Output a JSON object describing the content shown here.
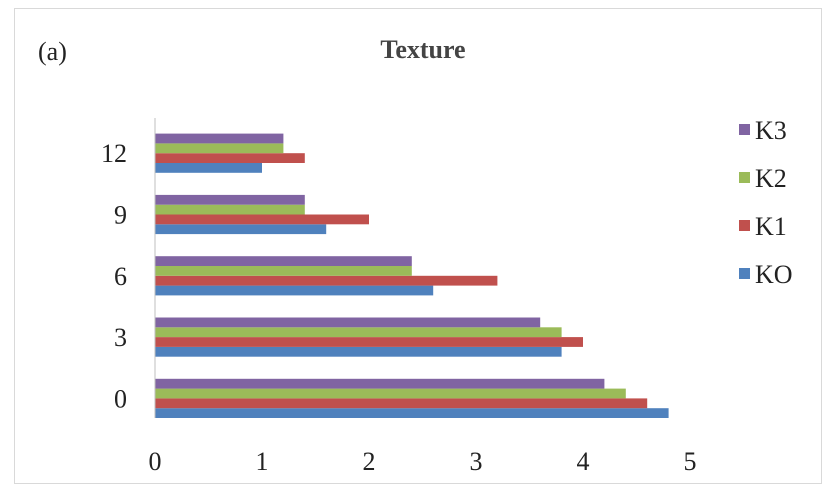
{
  "panel_label": "(a)",
  "chart_data": {
    "type": "bar",
    "orientation": "horizontal",
    "title": "Texture",
    "xlabel": "",
    "ylabel": "",
    "categories": [
      "0",
      "3",
      "6",
      "9",
      "12"
    ],
    "xlim": [
      0,
      5
    ],
    "xticks": [
      "0",
      "1",
      "2",
      "3",
      "4",
      "5"
    ],
    "grid": false,
    "legend_position": "right",
    "series": [
      {
        "name": "KO",
        "color": "#4f81bd",
        "values": [
          4.8,
          3.8,
          2.6,
          1.6,
          1.0
        ]
      },
      {
        "name": "K1",
        "color": "#c0504d",
        "values": [
          4.6,
          4.0,
          3.2,
          2.0,
          1.4
        ]
      },
      {
        "name": "K2",
        "color": "#9bbb59",
        "values": [
          4.4,
          3.8,
          2.4,
          1.4,
          1.2
        ]
      },
      {
        "name": "K3",
        "color": "#8064a2",
        "values": [
          4.2,
          3.6,
          2.4,
          1.4,
          1.2
        ]
      }
    ],
    "legend_order": [
      "K3",
      "K2",
      "K1",
      "KO"
    ]
  }
}
